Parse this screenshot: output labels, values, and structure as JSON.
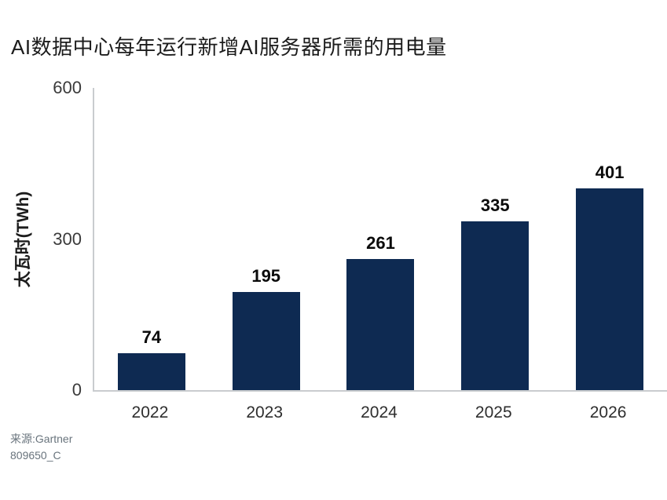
{
  "chart_data": {
    "type": "bar",
    "title": "AI数据中心每年运行新增AI服务器所需的用电量",
    "categories": [
      "2022",
      "2023",
      "2024",
      "2025",
      "2026"
    ],
    "values": [
      74,
      195,
      261,
      335,
      401
    ],
    "xlabel": "",
    "ylabel": "太瓦时(TWh)",
    "yticks": [
      0,
      300,
      600
    ],
    "ylim": [
      0,
      600
    ],
    "bar_color": "#0E2A52",
    "axis_color": "#c9cccf",
    "value_label_color": "#0b0b0b",
    "grid": false,
    "legend": false,
    "source": "来源:Gartner",
    "note": "809650_C"
  }
}
